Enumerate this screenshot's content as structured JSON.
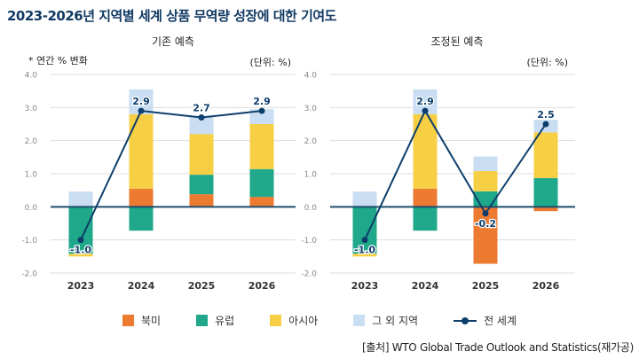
{
  "title": "2023-2026년 지역별 세계 상품 무역량 성장에 대한 기여도",
  "source": "[출처] WTO Global Trade Outlook and Statistics(재가공)",
  "colors": {
    "north_america": "#ec7a30",
    "europe": "#1fa88a",
    "asia": "#f7cf45",
    "other": "#c9def2",
    "world": "#0d3e6b"
  },
  "legend": [
    "북미",
    "유럽",
    "아시아",
    "그 외 지역",
    "전 세계"
  ],
  "chart_data": [
    {
      "type": "bar",
      "stacked": true,
      "title": "기존 예측",
      "ylabel": "* 연간 % 변화",
      "unit_label": "(단위: %)",
      "ylim": [
        -2.0,
        4.0
      ],
      "yticks": [
        "4.0",
        "3.0",
        "2.0",
        "1.0",
        "0.0",
        "-1.0",
        "-2.0"
      ],
      "categories": [
        "2023",
        "2024",
        "2025",
        "2026"
      ],
      "series": [
        {
          "name": "북미",
          "values": [
            0.0,
            0.55,
            0.38,
            0.3
          ]
        },
        {
          "name": "유럽",
          "values": [
            -1.42,
            -0.72,
            0.59,
            0.84
          ]
        },
        {
          "name": "아시아",
          "values": [
            -0.08,
            2.25,
            1.23,
            1.36
          ]
        },
        {
          "name": "그 외 지역",
          "values": [
            0.46,
            0.75,
            0.55,
            0.45
          ]
        }
      ],
      "line": {
        "name": "전 세계",
        "values": [
          -1.0,
          2.9,
          2.7,
          2.9
        ],
        "labels": [
          "-1.0",
          "2.9",
          "2.7",
          "2.9"
        ]
      }
    },
    {
      "type": "bar",
      "stacked": true,
      "title": "조정된 예측",
      "unit_label": "(단위: %)",
      "ylim": [
        -2.0,
        4.0
      ],
      "yticks": [
        "4.0",
        "3.0",
        "2.0",
        "1.0",
        "0.0",
        "-1.0",
        "-2.0"
      ],
      "categories": [
        "2023",
        "2024",
        "2025",
        "2026"
      ],
      "series": [
        {
          "name": "북미",
          "values": [
            0.0,
            0.55,
            -1.72,
            -0.13
          ]
        },
        {
          "name": "유럽",
          "values": [
            -1.42,
            -0.72,
            0.47,
            0.87
          ]
        },
        {
          "name": "아시아",
          "values": [
            -0.08,
            2.25,
            0.61,
            1.38
          ]
        },
        {
          "name": "그 외 지역",
          "values": [
            0.46,
            0.75,
            0.44,
            0.38
          ]
        }
      ],
      "line": {
        "name": "전 세계",
        "values": [
          -1.0,
          2.9,
          -0.2,
          2.5
        ],
        "labels": [
          "-1.0",
          "2.9",
          "-0.2",
          "2.5"
        ]
      }
    }
  ]
}
